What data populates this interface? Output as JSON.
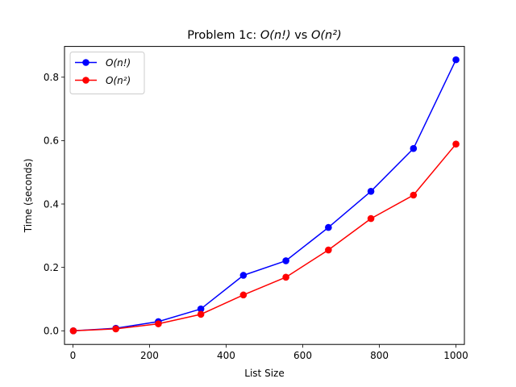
{
  "chart_data": {
    "type": "line",
    "title": "Problem 1c: O(n!) vs O(n²)",
    "xlabel": "List Size",
    "ylabel": "Time (seconds)",
    "xlim": [
      -22,
      1022
    ],
    "ylim": [
      -0.043,
      0.897
    ],
    "xticks": [
      0,
      200,
      400,
      600,
      800,
      1000
    ],
    "yticks": [
      0.0,
      0.2,
      0.4,
      0.6,
      0.8
    ],
    "grid": false,
    "legend_position": "top-left",
    "x": [
      1,
      112,
      223,
      334,
      445,
      556,
      667,
      778,
      889,
      1000
    ],
    "series": [
      {
        "name": "O(n!)",
        "color": "#0000ff",
        "values": [
          0.0,
          0.008,
          0.029,
          0.069,
          0.175,
          0.221,
          0.326,
          0.44,
          0.575,
          0.855
        ]
      },
      {
        "name": "O(n²)",
        "color": "#ff0000",
        "values": [
          0.0,
          0.006,
          0.022,
          0.052,
          0.113,
          0.169,
          0.255,
          0.354,
          0.428,
          0.589
        ]
      }
    ]
  }
}
